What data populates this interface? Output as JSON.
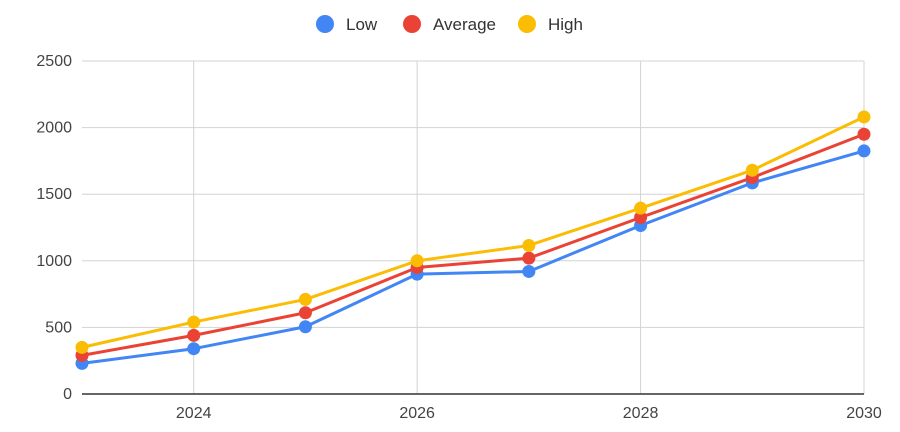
{
  "chart_data": {
    "type": "line",
    "x": [
      2023,
      2024,
      2025,
      2026,
      2027,
      2028,
      2029,
      2030
    ],
    "xticks": [
      "2024",
      "2026",
      "2028",
      "2030"
    ],
    "yticks": [
      "0",
      "500",
      "1000",
      "1500",
      "2000",
      "2500"
    ],
    "ylim": [
      0,
      2500
    ],
    "xlim": [
      2023,
      2030
    ],
    "grid": true,
    "legend_position": "top-center",
    "series": [
      {
        "name": "Low",
        "color": "#4285F4",
        "values": [
          230,
          340,
          505,
          900,
          920,
          1265,
          1585,
          1825
        ]
      },
      {
        "name": "Average",
        "color": "#EA4335",
        "values": [
          290,
          440,
          610,
          950,
          1020,
          1325,
          1625,
          1950
        ]
      },
      {
        "name": "High",
        "color": "#FBBC04",
        "values": [
          350,
          540,
          710,
          1000,
          1115,
          1395,
          1680,
          2080
        ]
      }
    ]
  }
}
